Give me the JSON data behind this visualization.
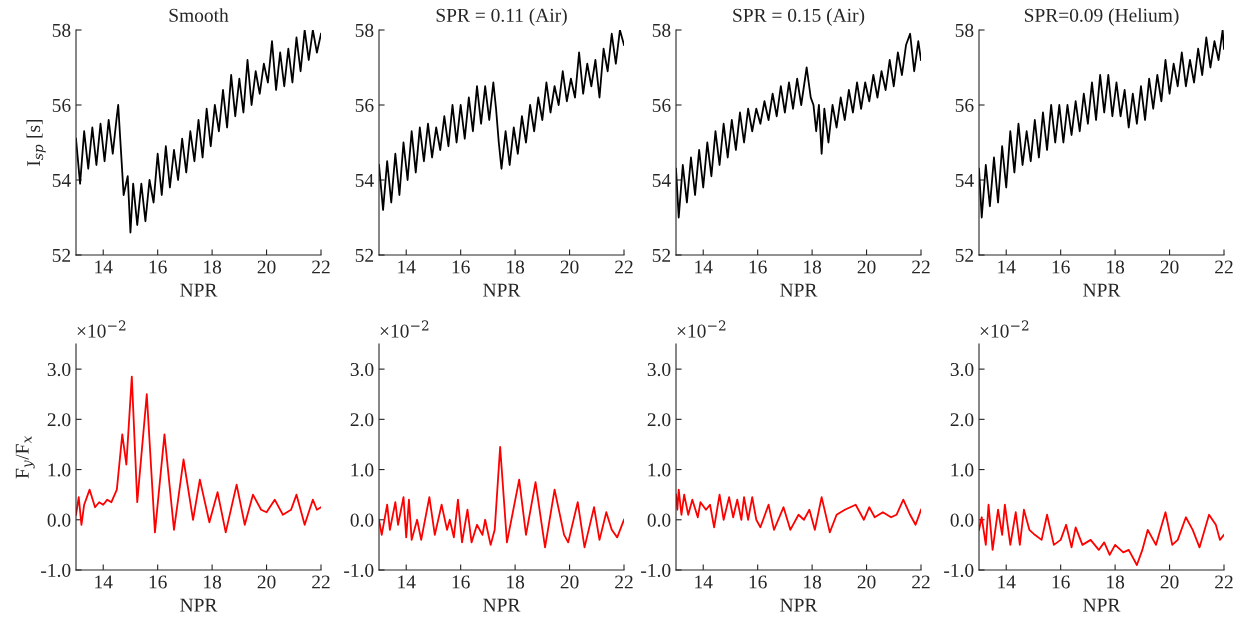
{
  "chart_data": [
    {
      "type": "line",
      "title": "Smooth",
      "xlabel": "NPR",
      "ylabel": "I$_{sp}$ [s]",
      "xlim": [
        13,
        22
      ],
      "ylim": [
        52,
        58
      ],
      "xticks": [
        14,
        16,
        18,
        20,
        22
      ],
      "yticks": [
        52,
        54,
        56,
        58
      ],
      "series": [
        {
          "color": "#000000",
          "x": [
            13.0,
            13.15,
            13.3,
            13.45,
            13.6,
            13.75,
            13.9,
            14.05,
            14.2,
            14.35,
            14.5,
            14.55,
            14.65,
            14.75,
            14.9,
            15.0,
            15.1,
            15.25,
            15.4,
            15.55,
            15.7,
            15.85,
            16.0,
            16.15,
            16.3,
            16.45,
            16.6,
            16.75,
            16.9,
            17.05,
            17.2,
            17.35,
            17.5,
            17.65,
            17.8,
            17.95,
            18.1,
            18.25,
            18.4,
            18.55,
            18.7,
            18.85,
            19.0,
            19.15,
            19.3,
            19.45,
            19.6,
            19.75,
            19.9,
            20.05,
            20.2,
            20.35,
            20.5,
            20.65,
            20.8,
            20.95,
            21.1,
            21.25,
            21.4,
            21.55,
            21.7,
            21.85,
            22.0
          ],
          "values": [
            55.1,
            53.9,
            55.3,
            54.3,
            55.4,
            54.4,
            55.5,
            54.5,
            55.6,
            54.7,
            55.7,
            56.0,
            54.8,
            53.6,
            54.1,
            52.6,
            53.9,
            52.8,
            53.9,
            52.9,
            54.0,
            53.4,
            54.7,
            53.6,
            54.9,
            53.8,
            54.8,
            54.0,
            55.1,
            54.2,
            55.3,
            54.5,
            55.6,
            54.6,
            55.9,
            54.9,
            56.0,
            55.3,
            56.4,
            55.4,
            56.8,
            55.7,
            56.7,
            55.8,
            57.2,
            56.0,
            56.9,
            56.3,
            57.1,
            56.6,
            57.7,
            56.4,
            57.4,
            56.5,
            57.5,
            56.6,
            57.8,
            56.9,
            58.0,
            57.2,
            58.0,
            57.4,
            57.9
          ]
        }
      ]
    },
    {
      "type": "line",
      "title": "SPR = 0.11 (Air)",
      "xlabel": "NPR",
      "xlim": [
        13,
        22
      ],
      "ylim": [
        52,
        58
      ],
      "xticks": [
        14,
        16,
        18,
        20,
        22
      ],
      "yticks": [
        52,
        54,
        56,
        58
      ],
      "series": [
        {
          "color": "#000000",
          "x": [
            13.0,
            13.15,
            13.3,
            13.45,
            13.6,
            13.75,
            13.9,
            14.05,
            14.2,
            14.35,
            14.5,
            14.65,
            14.8,
            14.95,
            15.1,
            15.25,
            15.4,
            15.55,
            15.7,
            15.85,
            16.0,
            16.15,
            16.3,
            16.45,
            16.6,
            16.75,
            16.9,
            17.05,
            17.2,
            17.3,
            17.4,
            17.5,
            17.65,
            17.8,
            17.95,
            18.1,
            18.25,
            18.4,
            18.55,
            18.7,
            18.85,
            19.0,
            19.15,
            19.3,
            19.45,
            19.6,
            19.75,
            19.9,
            20.05,
            20.2,
            20.35,
            20.5,
            20.65,
            20.8,
            20.95,
            21.1,
            21.25,
            21.4,
            21.55,
            21.7,
            21.85,
            22.0
          ],
          "values": [
            54.4,
            53.2,
            54.5,
            53.4,
            54.7,
            53.6,
            55.0,
            54.0,
            55.3,
            54.2,
            55.4,
            54.5,
            55.5,
            54.6,
            55.4,
            54.8,
            55.7,
            54.9,
            56.0,
            55.0,
            56.0,
            55.1,
            56.2,
            55.3,
            56.5,
            55.5,
            56.5,
            55.6,
            56.6,
            55.9,
            55.0,
            54.3,
            55.3,
            54.4,
            55.4,
            54.7,
            55.7,
            55.0,
            56.0,
            55.3,
            56.2,
            55.6,
            56.6,
            55.8,
            56.5,
            56.0,
            56.9,
            56.1,
            56.7,
            56.2,
            57.4,
            56.3,
            57.1,
            56.5,
            57.2,
            56.2,
            57.5,
            56.9,
            57.9,
            57.1,
            58.0,
            57.6
          ]
        }
      ]
    },
    {
      "type": "line",
      "title": "SPR = 0.15 (Air)",
      "xlabel": "NPR",
      "xlim": [
        13,
        22
      ],
      "ylim": [
        52,
        58
      ],
      "xticks": [
        14,
        16,
        18,
        20,
        22
      ],
      "yticks": [
        52,
        54,
        56,
        58
      ],
      "series": [
        {
          "color": "#000000",
          "x": [
            13.0,
            13.1,
            13.25,
            13.4,
            13.55,
            13.7,
            13.85,
            14.0,
            14.15,
            14.3,
            14.45,
            14.6,
            14.75,
            14.9,
            15.05,
            15.2,
            15.35,
            15.5,
            15.65,
            15.8,
            15.95,
            16.1,
            16.25,
            16.4,
            16.55,
            16.7,
            16.85,
            17.0,
            17.15,
            17.3,
            17.45,
            17.6,
            17.8,
            17.95,
            18.05,
            18.15,
            18.25,
            18.35,
            18.45,
            18.6,
            18.75,
            18.9,
            19.05,
            19.2,
            19.35,
            19.5,
            19.65,
            19.8,
            19.95,
            20.1,
            20.25,
            20.4,
            20.55,
            20.7,
            20.85,
            21.0,
            21.15,
            21.3,
            21.45,
            21.6,
            21.75,
            21.9,
            22.0
          ],
          "values": [
            54.3,
            53.0,
            54.4,
            53.4,
            54.6,
            53.6,
            54.8,
            53.8,
            55.0,
            54.1,
            55.3,
            54.4,
            55.5,
            54.6,
            55.6,
            54.8,
            55.8,
            55.0,
            55.9,
            55.3,
            55.9,
            55.5,
            56.1,
            55.6,
            56.3,
            55.7,
            56.5,
            55.8,
            56.6,
            55.9,
            56.7,
            56.0,
            57.0,
            56.2,
            56.0,
            55.3,
            56.0,
            54.7,
            55.9,
            55.0,
            56.0,
            55.4,
            56.2,
            55.6,
            56.4,
            55.8,
            56.6,
            55.9,
            56.6,
            56.1,
            56.8,
            56.2,
            56.9,
            56.4,
            57.2,
            56.5,
            57.4,
            56.8,
            57.6,
            57.9,
            56.9,
            57.7,
            57.2
          ]
        }
      ]
    },
    {
      "type": "line",
      "title": "SPR=0.09 (Helium)",
      "xlabel": "NPR",
      "xlim": [
        13,
        22
      ],
      "ylim": [
        52,
        58
      ],
      "xticks": [
        14,
        16,
        18,
        20,
        22
      ],
      "yticks": [
        52,
        54,
        56,
        58
      ],
      "series": [
        {
          "color": "#000000",
          "x": [
            13.0,
            13.1,
            13.25,
            13.4,
            13.55,
            13.7,
            13.85,
            14.0,
            14.15,
            14.3,
            14.45,
            14.6,
            14.75,
            14.9,
            15.05,
            15.2,
            15.35,
            15.5,
            15.65,
            15.8,
            15.95,
            16.1,
            16.25,
            16.4,
            16.55,
            16.7,
            16.85,
            17.0,
            17.15,
            17.3,
            17.45,
            17.6,
            17.75,
            17.9,
            18.05,
            18.2,
            18.35,
            18.5,
            18.65,
            18.8,
            18.95,
            19.1,
            19.25,
            19.4,
            19.55,
            19.7,
            19.85,
            20.0,
            20.15,
            20.3,
            20.45,
            20.6,
            20.75,
            20.9,
            21.05,
            21.2,
            21.35,
            21.5,
            21.65,
            21.8,
            21.95,
            22.0
          ],
          "values": [
            54.3,
            53.0,
            54.4,
            53.3,
            54.6,
            53.4,
            54.9,
            53.8,
            55.3,
            54.2,
            55.5,
            54.4,
            55.3,
            54.5,
            55.6,
            54.6,
            55.8,
            54.8,
            56.0,
            55.0,
            56.0,
            55.0,
            56.0,
            55.2,
            56.1,
            55.3,
            56.3,
            55.5,
            56.6,
            55.6,
            56.8,
            55.8,
            56.8,
            55.7,
            56.6,
            55.7,
            56.4,
            55.4,
            56.3,
            55.5,
            56.5,
            55.6,
            56.7,
            55.9,
            56.8,
            56.1,
            57.2,
            56.3,
            57.1,
            56.5,
            57.4,
            56.5,
            57.2,
            56.6,
            57.5,
            56.8,
            57.8,
            57.0,
            57.7,
            57.2,
            58.0,
            57.5
          ]
        }
      ]
    },
    {
      "type": "line",
      "xlabel": "NPR",
      "ylabel": "F$_{y}$/F$_{x}$",
      "annotations": [
        "×10$^{−2}$"
      ],
      "xlim": [
        13,
        22
      ],
      "ylim": [
        -1,
        3.5
      ],
      "xticks": [
        14,
        16,
        18,
        20,
        22
      ],
      "yticks": [
        {
          "value": -1,
          "label": "-1.0"
        },
        {
          "value": 0,
          "label": "0.0"
        },
        {
          "value": 1,
          "label": "1.0"
        },
        {
          "value": 2,
          "label": "2.0"
        },
        {
          "value": 3,
          "label": "3.0"
        }
      ],
      "series": [
        {
          "color": "#ff0000",
          "x": [
            13.0,
            13.1,
            13.2,
            13.3,
            13.5,
            13.7,
            13.85,
            14.0,
            14.15,
            14.3,
            14.5,
            14.7,
            14.85,
            15.05,
            15.25,
            15.6,
            15.9,
            16.25,
            16.6,
            16.95,
            17.3,
            17.55,
            17.9,
            18.2,
            18.5,
            18.9,
            19.2,
            19.5,
            19.8,
            20.0,
            20.3,
            20.6,
            20.9,
            21.1,
            21.4,
            21.7,
            21.85,
            22.0
          ],
          "values": [
            0.1,
            0.45,
            -0.1,
            0.3,
            0.6,
            0.25,
            0.35,
            0.3,
            0.4,
            0.35,
            0.6,
            1.7,
            1.1,
            2.85,
            0.35,
            2.5,
            -0.25,
            1.7,
            -0.2,
            1.2,
            0.0,
            0.8,
            -0.05,
            0.55,
            -0.25,
            0.7,
            -0.1,
            0.5,
            0.2,
            0.15,
            0.4,
            0.1,
            0.2,
            0.5,
            -0.1,
            0.4,
            0.2,
            0.25
          ]
        }
      ]
    },
    {
      "type": "line",
      "xlabel": "NPR",
      "annotations": [
        "×10$^{−2}$"
      ],
      "xlim": [
        13,
        22
      ],
      "ylim": [
        -1,
        3.5
      ],
      "xticks": [
        14,
        16,
        18,
        20,
        22
      ],
      "yticks": [
        {
          "value": -1,
          "label": "-1.0"
        },
        {
          "value": 0,
          "label": "0.0"
        },
        {
          "value": 1,
          "label": "1.0"
        },
        {
          "value": 2,
          "label": "2.0"
        },
        {
          "value": 3,
          "label": "3.0"
        }
      ],
      "series": [
        {
          "color": "#ff0000",
          "x": [
            13.0,
            13.1,
            13.3,
            13.4,
            13.6,
            13.7,
            13.9,
            14.0,
            14.1,
            14.2,
            14.4,
            14.55,
            14.85,
            15.05,
            15.3,
            15.5,
            15.6,
            15.75,
            15.9,
            16.05,
            16.25,
            16.4,
            16.6,
            16.8,
            16.9,
            17.1,
            17.25,
            17.45,
            17.7,
            18.15,
            18.4,
            18.75,
            19.1,
            19.45,
            19.8,
            19.95,
            20.3,
            20.55,
            20.9,
            21.1,
            21.35,
            21.55,
            21.75,
            22.0
          ],
          "values": [
            0.0,
            -0.3,
            0.3,
            -0.2,
            0.35,
            -0.1,
            0.45,
            -0.35,
            0.4,
            -0.4,
            0.0,
            -0.4,
            0.45,
            -0.3,
            0.3,
            -0.2,
            0.0,
            -0.35,
            0.4,
            -0.45,
            0.2,
            -0.45,
            -0.1,
            -0.3,
            0.0,
            -0.5,
            -0.2,
            1.45,
            -0.45,
            0.8,
            -0.3,
            0.75,
            -0.55,
            0.6,
            -0.3,
            -0.45,
            0.35,
            -0.55,
            0.25,
            -0.4,
            0.15,
            -0.2,
            -0.35,
            0.0
          ]
        }
      ]
    },
    {
      "type": "line",
      "xlabel": "NPR",
      "annotations": [
        "×10$^{−2}$"
      ],
      "xlim": [
        13,
        22
      ],
      "ylim": [
        -1,
        3.5
      ],
      "xticks": [
        14,
        16,
        18,
        20,
        22
      ],
      "yticks": [
        {
          "value": -1,
          "label": "-1.0"
        },
        {
          "value": 0,
          "label": "0.0"
        },
        {
          "value": 1,
          "label": "1.0"
        },
        {
          "value": 2,
          "label": "2.0"
        },
        {
          "value": 3,
          "label": "3.0"
        }
      ],
      "series": [
        {
          "color": "#ff0000",
          "x": [
            13.0,
            13.05,
            13.1,
            13.2,
            13.3,
            13.45,
            13.6,
            13.8,
            13.9,
            14.1,
            14.25,
            14.4,
            14.6,
            14.75,
            14.95,
            15.1,
            15.25,
            15.4,
            15.5,
            15.65,
            15.8,
            15.95,
            16.1,
            16.4,
            16.6,
            16.95,
            17.2,
            17.5,
            17.7,
            17.9,
            18.1,
            18.35,
            18.65,
            18.9,
            19.2,
            19.6,
            19.9,
            20.1,
            20.3,
            20.6,
            20.9,
            21.1,
            21.35,
            21.6,
            21.8,
            22.0
          ],
          "values": [
            0.5,
            0.2,
            0.6,
            0.1,
            0.5,
            0.1,
            0.4,
            0.05,
            0.35,
            0.2,
            0.3,
            -0.15,
            0.5,
            0.0,
            0.45,
            0.05,
            0.4,
            0.0,
            0.45,
            0.0,
            0.45,
            0.0,
            -0.15,
            0.3,
            -0.2,
            0.25,
            -0.2,
            0.1,
            0.0,
            0.2,
            -0.2,
            0.45,
            -0.25,
            0.1,
            0.2,
            0.3,
            0.0,
            0.25,
            0.05,
            0.15,
            0.05,
            0.1,
            0.4,
            0.1,
            -0.1,
            0.2
          ]
        }
      ]
    },
    {
      "type": "line",
      "xlabel": "NPR",
      "annotations": [
        "×10$^{−2}$"
      ],
      "xlim": [
        13,
        22
      ],
      "ylim": [
        -1,
        3.5
      ],
      "xticks": [
        14,
        16,
        18,
        20,
        22
      ],
      "yticks": [
        {
          "value": -1,
          "label": "-1.0"
        },
        {
          "value": 0,
          "label": "0.0"
        },
        {
          "value": 1,
          "label": "1.0"
        },
        {
          "value": 2,
          "label": "2.0"
        },
        {
          "value": 3,
          "label": "3.0"
        }
      ],
      "series": [
        {
          "color": "#ff0000",
          "x": [
            13.0,
            13.1,
            13.25,
            13.35,
            13.5,
            13.7,
            13.85,
            13.95,
            14.15,
            14.35,
            14.5,
            14.65,
            14.85,
            15.05,
            15.3,
            15.5,
            15.75,
            16.0,
            16.2,
            16.4,
            16.55,
            16.8,
            17.1,
            17.4,
            17.6,
            17.8,
            18.0,
            18.3,
            18.5,
            18.8,
            19.0,
            19.2,
            19.5,
            19.85,
            20.1,
            20.3,
            20.6,
            20.85,
            21.1,
            21.45,
            21.7,
            21.85,
            22.0
          ],
          "values": [
            -0.2,
            0.05,
            -0.5,
            0.3,
            -0.6,
            0.2,
            -0.3,
            0.3,
            -0.5,
            0.15,
            -0.5,
            0.2,
            -0.2,
            -0.3,
            -0.4,
            0.1,
            -0.5,
            -0.4,
            -0.1,
            -0.55,
            -0.15,
            -0.5,
            -0.4,
            -0.6,
            -0.45,
            -0.7,
            -0.5,
            -0.65,
            -0.6,
            -0.9,
            -0.6,
            -0.2,
            -0.5,
            0.15,
            -0.5,
            -0.4,
            0.05,
            -0.2,
            -0.55,
            0.1,
            -0.1,
            -0.4,
            -0.3
          ]
        }
      ]
    }
  ]
}
